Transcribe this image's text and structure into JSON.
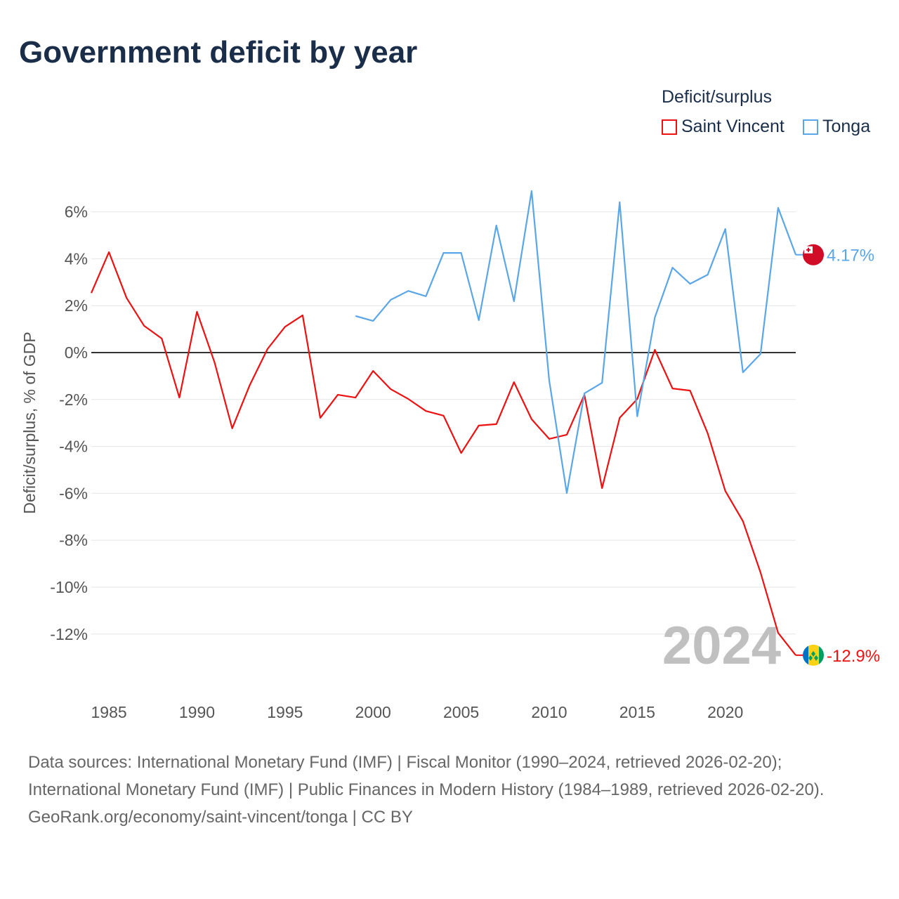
{
  "title": "Government deficit by year",
  "legend": {
    "title": "Deficit/surplus",
    "items": [
      "Saint Vincent",
      "Tonga"
    ]
  },
  "colors": {
    "saint_vincent": "#ee1111",
    "tonga": "#5aa6e8"
  },
  "chart_data": {
    "type": "line",
    "title": "Government deficit by year",
    "xlabel": "",
    "ylabel": "Deficit/surplus, % of GDP",
    "xlim": [
      1984,
      2024
    ],
    "ylim": [
      -14,
      7.5
    ],
    "x_ticks": [
      "1985",
      "1990",
      "1995",
      "2000",
      "2005",
      "2010",
      "2015",
      "2020"
    ],
    "y_ticks": [
      "6%",
      "4%",
      "2%",
      "0%",
      "-2%",
      "-4%",
      "-6%",
      "-8%",
      "-10%",
      "-12%"
    ],
    "y_tick_values": [
      6,
      4,
      2,
      0,
      -2,
      -4,
      -6,
      -8,
      -10,
      -12
    ],
    "year_label": "2024",
    "series": [
      {
        "name": "Saint Vincent",
        "start_year": 1984,
        "end_label": "-12.9%",
        "values": [
          2.54,
          4.28,
          2.33,
          1.14,
          0.6,
          -1.92,
          1.74,
          -0.42,
          -3.23,
          -1.38,
          0.15,
          1.1,
          1.59,
          -2.78,
          -1.8,
          -1.92,
          -0.78,
          -1.56,
          -1.98,
          -2.49,
          -2.69,
          -4.28,
          -3.11,
          -3.05,
          -1.26,
          -2.84,
          -3.68,
          -3.5,
          -1.8,
          -5.78,
          -2.78,
          -1.98,
          0.12,
          -1.53,
          -1.62,
          -3.44,
          -5.9,
          -7.19,
          -9.37,
          -11.95,
          -12.9
        ]
      },
      {
        "name": "Tonga",
        "start_year": 1999,
        "end_label": "4.17%",
        "values": [
          1.56,
          1.35,
          2.25,
          2.63,
          2.4,
          4.25,
          4.25,
          1.38,
          5.42,
          2.19,
          6.89,
          -1.2,
          -5.99,
          -1.74,
          -1.29,
          6.41,
          -2.72,
          1.5,
          3.62,
          2.93,
          3.32,
          5.27,
          -0.84,
          -0.06,
          6.17,
          4.17
        ]
      }
    ]
  },
  "footer": {
    "sources": "Data sources: International Monetary Fund (IMF) | Fiscal Monitor (1990–2024, retrieved 2026-02-20); International Monetary Fund (IMF) | Public Finances in Modern History (1984–1989, retrieved 2026-02-20).",
    "link": "GeoRank.org/economy/saint-vincent/tonga | CC BY"
  }
}
